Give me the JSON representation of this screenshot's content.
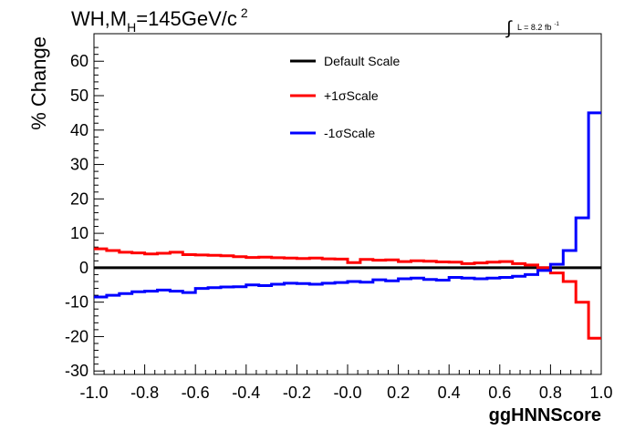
{
  "chart_data": {
    "type": "line",
    "title": "WH,M_H=145GeV/c^2",
    "title_parts": {
      "main": "WH,M",
      "sub": "H",
      "rest": "=145GeV/c",
      "sup": "2"
    },
    "lumi_label": {
      "integral": "∫",
      "text": "L = 8.2 fb",
      "sup": "-1"
    },
    "xlabel": "ggHNNScore",
    "ylabel": "% Change",
    "xlim": [
      -1.0,
      1.0
    ],
    "ylim": [
      -31,
      68
    ],
    "x_ticks": [
      -1.0,
      -0.8,
      -0.6,
      -0.4,
      -0.2,
      0.0,
      0.2,
      0.4,
      0.6,
      0.8,
      1.0
    ],
    "x_tick_labels": [
      "-1.0",
      "-0.8",
      "-0.6",
      "-0.4",
      "-0.2",
      "-0.0",
      "0.2",
      "0.4",
      "0.6",
      "0.8",
      "1.0"
    ],
    "y_ticks": [
      -30,
      -20,
      -10,
      0,
      10,
      20,
      30,
      40,
      50,
      60
    ],
    "y_tick_labels": [
      "-30",
      "-20",
      "-10",
      "0",
      "10",
      "20",
      "30",
      "40",
      "50",
      "60"
    ],
    "grid": false,
    "legend_position": "top-center",
    "bin_edges": [
      -1.0,
      -0.95,
      -0.9,
      -0.85,
      -0.8,
      -0.75,
      -0.7,
      -0.65,
      -0.6,
      -0.55,
      -0.5,
      -0.45,
      -0.4,
      -0.35,
      -0.3,
      -0.25,
      -0.2,
      -0.15,
      -0.1,
      -0.05,
      0.0,
      0.05,
      0.1,
      0.15,
      0.2,
      0.25,
      0.3,
      0.35,
      0.4,
      0.45,
      0.5,
      0.55,
      0.6,
      0.65,
      0.7,
      0.75,
      0.8,
      0.85,
      0.9,
      0.95,
      1.0
    ],
    "series": [
      {
        "name": "Default Scale",
        "color": "#000000",
        "values": [
          0,
          0,
          0,
          0,
          0,
          0,
          0,
          0,
          0,
          0,
          0,
          0,
          0,
          0,
          0,
          0,
          0,
          0,
          0,
          0,
          0,
          0,
          0,
          0,
          0,
          0,
          0,
          0,
          0,
          0,
          0,
          0,
          0,
          0,
          0,
          0,
          0,
          0,
          0,
          0
        ]
      },
      {
        "name": "+1σScale",
        "color": "#ff0000",
        "values": [
          5.5,
          5.0,
          4.5,
          4.3,
          4.0,
          4.2,
          4.5,
          3.8,
          3.7,
          3.6,
          3.5,
          3.2,
          3.0,
          3.1,
          2.9,
          2.8,
          2.7,
          2.8,
          2.6,
          2.5,
          1.5,
          2.4,
          2.2,
          2.3,
          1.8,
          2.0,
          1.9,
          1.7,
          1.6,
          1.2,
          1.4,
          1.6,
          1.8,
          1.2,
          0.8,
          0.0,
          -1.5,
          -4.0,
          -10.0,
          -20.5
        ]
      },
      {
        "name": "-1σScale",
        "color": "#0000ff",
        "values": [
          -8.5,
          -8.0,
          -7.5,
          -7.0,
          -6.8,
          -6.5,
          -6.8,
          -7.2,
          -6.0,
          -5.8,
          -5.6,
          -5.5,
          -5.0,
          -5.2,
          -4.8,
          -4.5,
          -4.6,
          -4.8,
          -4.5,
          -4.3,
          -4.0,
          -4.2,
          -3.5,
          -3.8,
          -3.2,
          -3.0,
          -3.4,
          -3.6,
          -2.8,
          -3.0,
          -3.2,
          -3.0,
          -2.8,
          -2.5,
          -2.0,
          -0.8,
          1.0,
          5.0,
          14.5,
          45.0
        ]
      }
    ]
  }
}
